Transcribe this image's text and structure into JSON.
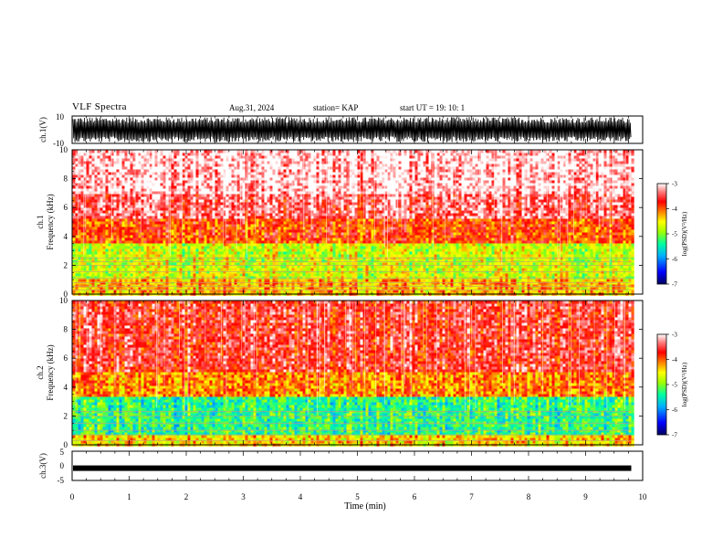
{
  "header": {
    "title": "VLF Spectra",
    "date": "Aug.31, 2024",
    "station": "station= KAP",
    "start": "start  UT =   19: 10: 1"
  },
  "chart_data": [
    {
      "type": "line",
      "panel": "waveform-ch1",
      "ylabel": "ch.1(V)",
      "ylim": [
        -10,
        10
      ],
      "y_tick_labels": [
        "10",
        "-10"
      ],
      "xlim": [
        0,
        10
      ],
      "data_extent_min": 9.8,
      "description_of_signal": "dense noise filling most of the range"
    },
    {
      "type": "heatmap",
      "panel": "spectrogram-ch1",
      "ylabel_line1": "ch.1",
      "ylabel_line2": "Frequency  (kHz)",
      "ylim": [
        0,
        10
      ],
      "y_tick_labels": [
        "0",
        "2",
        "4",
        "6",
        "8",
        "10"
      ],
      "xlim": [
        0,
        10
      ],
      "data_extent_min": 9.8,
      "colorbar": {
        "label": "log(PSD)(V²/Hz)",
        "range": [
          -7,
          -3
        ],
        "tick_labels": [
          "-3",
          "-4",
          "-5",
          "-6",
          "-7"
        ]
      },
      "bands": [
        {
          "freq_range_khz": [
            0,
            1.1
          ],
          "level": -4.3
        },
        {
          "freq_range_khz": [
            1.1,
            3.5
          ],
          "level": -4.7
        },
        {
          "freq_range_khz": [
            3.5,
            5.2
          ],
          "level": -3.9
        },
        {
          "freq_range_khz": [
            5.2,
            7.0
          ],
          "level": -3.4
        },
        {
          "freq_range_khz": [
            7.0,
            10.0
          ],
          "level": -3.1
        }
      ],
      "lines_khz": [
        0.3,
        0.55,
        0.8,
        1.1,
        1.55,
        2.0,
        2.25,
        2.5
      ]
    },
    {
      "type": "heatmap",
      "panel": "spectrogram-ch2",
      "ylabel_line1": "ch.2",
      "ylabel_line2": "Frequency  (kHz)",
      "ylim": [
        0,
        10
      ],
      "y_tick_labels": [
        "0",
        "2",
        "4",
        "6",
        "8",
        "10"
      ],
      "xlim": [
        0,
        10
      ],
      "data_extent_min": 9.8,
      "colorbar": {
        "label": "log(PSD)(V²/Hz)",
        "range": [
          -7,
          -3
        ],
        "tick_labels": [
          "-3",
          "-4",
          "-5",
          "-6",
          "-7"
        ]
      },
      "bands": [
        {
          "freq_range_khz": [
            0,
            0.6
          ],
          "level": -4.4
        },
        {
          "freq_range_khz": [
            0.6,
            3.3
          ],
          "level": -5.3
        },
        {
          "freq_range_khz": [
            3.3,
            5.0
          ],
          "level": -4.1
        },
        {
          "freq_range_khz": [
            5.0,
            10.0
          ],
          "level": -3.6
        }
      ],
      "lines_khz": [
        0.3,
        0.7,
        1.0,
        1.5,
        2.0,
        2.3
      ]
    },
    {
      "type": "line",
      "panel": "waveform-ch3",
      "ylabel": "ch.3(V)",
      "ylim": [
        -5,
        5
      ],
      "y_tick_labels": [
        "5",
        "0",
        "-5"
      ],
      "xlim": [
        0,
        10
      ],
      "data_extent_min": 9.8,
      "signal_level_v": -0.8,
      "description_of_signal": "flat thick band near 0 V"
    }
  ],
  "x_axis": {
    "label": "Time  (min)",
    "tick_labels": [
      "0",
      "1",
      "2",
      "3",
      "4",
      "5",
      "6",
      "7",
      "8",
      "9",
      "10"
    ],
    "range": [
      0,
      10
    ]
  },
  "colors": {
    "background": "#ffffff",
    "axes": "#000000",
    "colormap": [
      "#000080",
      "#0000ff",
      "#00a0ff",
      "#00ffa0",
      "#a0ff00",
      "#ffff00",
      "#ff8000",
      "#ff0000",
      "#ffffff"
    ]
  }
}
